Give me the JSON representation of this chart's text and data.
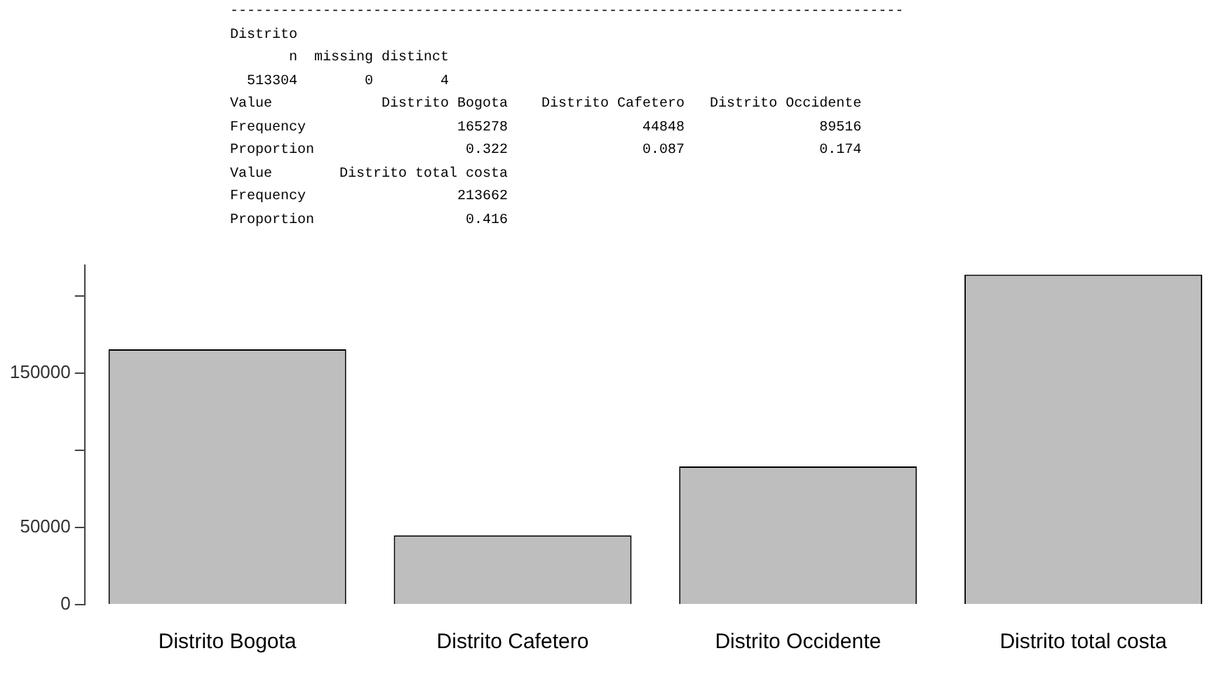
{
  "chart_data": {
    "type": "bar",
    "categories": [
      "Distrito Bogota",
      "Distrito Cafetero",
      "Distrito Occidente",
      "Distrito total costa"
    ],
    "values": [
      165278,
      44848,
      89516,
      213662
    ],
    "color": "#bebebe",
    "ylim": [
      0,
      220000
    ],
    "yticks": [
      0,
      50000,
      {
        "value": 100000,
        "label": null
      },
      150000,
      {
        "value": 200000,
        "label": null
      }
    ],
    "grid": false,
    "legend": false,
    "annotations": [
      "--------------------------------------------------------------------------------",
      "Distrito",
      "       n  missing distinct",
      "  513304        0        4",
      "Value             Distrito Bogota    Distrito Cafetero   Distrito Occidente",
      "Frequency                  165278                44848                89516",
      "Proportion                  0.322                0.087                0.174",
      "Value        Distrito total costa",
      "Frequency                  213662",
      "Proportion                  0.416"
    ]
  }
}
